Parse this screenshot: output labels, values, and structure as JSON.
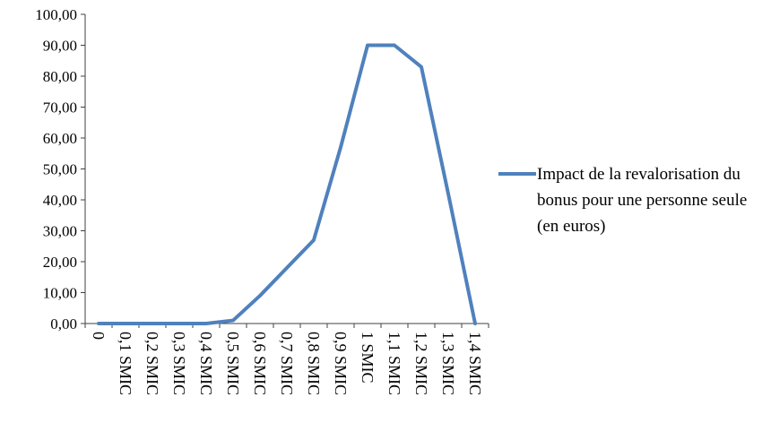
{
  "chart_data": {
    "type": "line",
    "title": "",
    "categories": [
      "0",
      "0,1 SMIC",
      "0,2 SMIC",
      "0,3 SMIC",
      "0,4 SMIC",
      "0,5 SMIC",
      "0,6 SMIC",
      "0,7 SMIC",
      "0,8 SMIC",
      "0,9 SMIC",
      "1 SMIC",
      "1,1 SMIC",
      "1,2 SMIC",
      "1,3 SMIC",
      "1,4 SMIC"
    ],
    "series": [
      {
        "name": "Impact de la revalorisation du bonus pour une personne seule (en euros)",
        "values": [
          0,
          0,
          0,
          0,
          0,
          1,
          9,
          18,
          27,
          57,
          90,
          90,
          83,
          42,
          0
        ],
        "color": "#4F81BD"
      }
    ],
    "xlabel": "",
    "ylabel": "",
    "ylim": [
      0,
      100
    ],
    "y_tick_step": 10,
    "y_tick_labels": [
      "0,00",
      "10,00",
      "20,00",
      "30,00",
      "40,00",
      "50,00",
      "60,00",
      "70,00",
      "80,00",
      "90,00",
      "100,00"
    ],
    "grid": false,
    "legend_position": "right"
  },
  "legend": {
    "label": "Impact de la revalorisation du bonus pour une personne seule (en euros)"
  },
  "colors": {
    "series": "#4F81BD",
    "axis": "#404040",
    "text": "#000000"
  }
}
